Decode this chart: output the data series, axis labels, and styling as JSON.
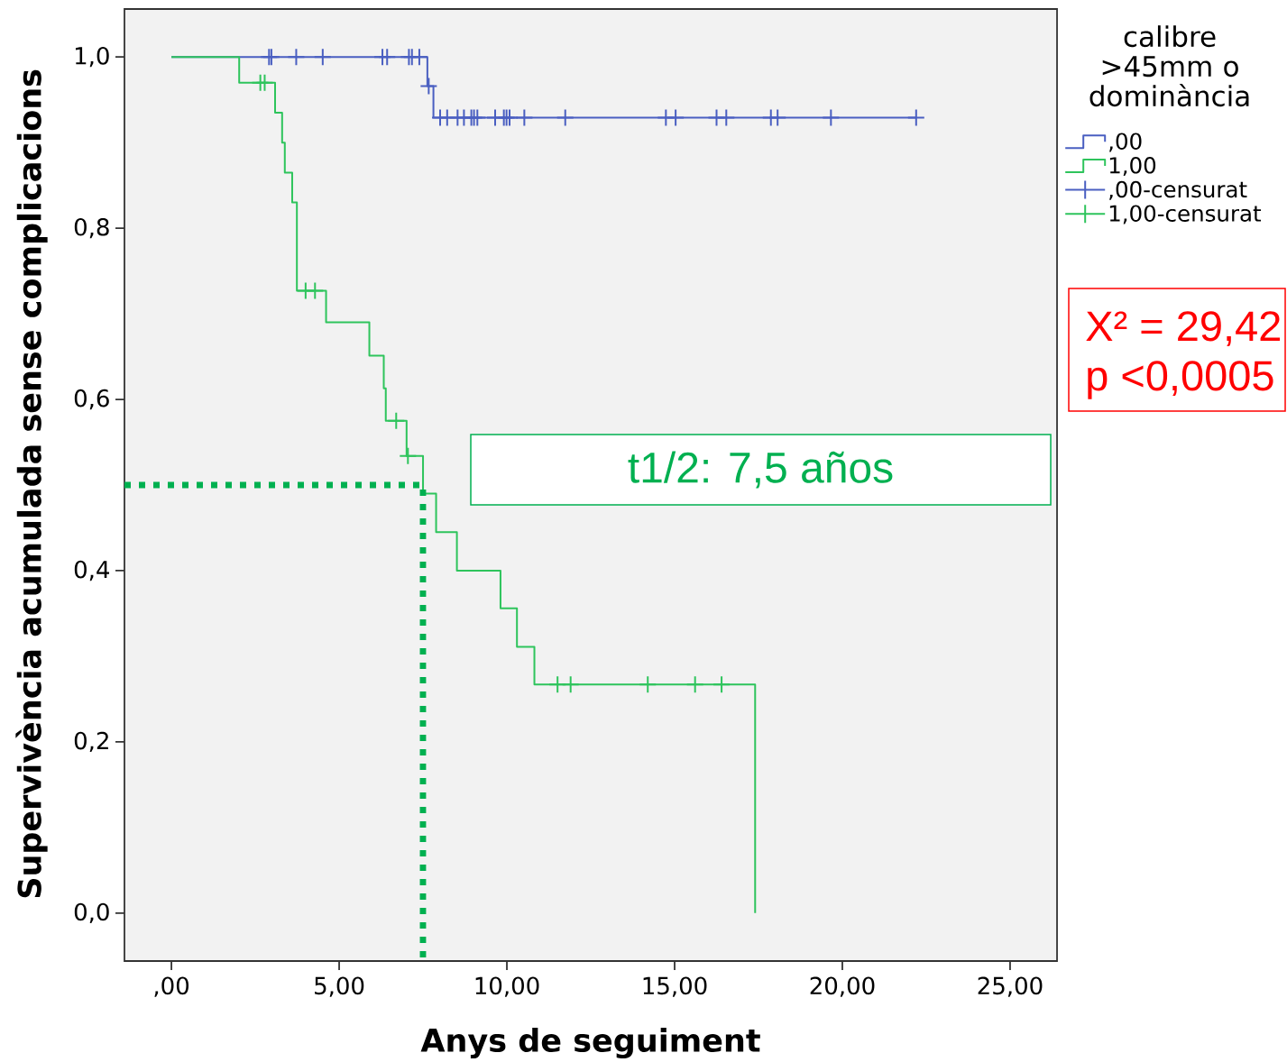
{
  "chart_data": {
    "type": "step",
    "xlabel": "Anys de seguiment",
    "ylabel": "Supervivència acumulada sense complicacions",
    "legend_title": "calibre >45mm o dominància",
    "legend": "right",
    "xlim": [
      -1.4,
      26.4
    ],
    "ylim": [
      -0.056,
      1.056
    ],
    "xticks": [
      {
        "value": 0,
        "label": ",00"
      },
      {
        "value": 5,
        "label": "5,00"
      },
      {
        "value": 10,
        "label": "10,00"
      },
      {
        "value": 15,
        "label": "15,00"
      },
      {
        "value": 20,
        "label": "20,00"
      },
      {
        "value": 25,
        "label": "25,00"
      }
    ],
    "yticks": [
      {
        "value": 0,
        "label": "0,0"
      },
      {
        "value": 0.2,
        "label": "0,2"
      },
      {
        "value": 0.4,
        "label": "0,4"
      },
      {
        "value": 0.6,
        "label": "0,6"
      },
      {
        "value": 0.8,
        "label": "0,8"
      },
      {
        "value": 1,
        "label": "1,0"
      }
    ],
    "series": [
      {
        "name": ",00",
        "color": "#4a5fc1",
        "x": [
          0,
          7.63,
          7.81,
          22.2
        ],
        "values": [
          1.0,
          0.966,
          0.929,
          0.929
        ]
      },
      {
        "name": "1,00",
        "color": "#2ec45c",
        "x": [
          0,
          2.02,
          3.09,
          3.3,
          3.38,
          3.6,
          3.74,
          4.61,
          5.9,
          6.33,
          6.39,
          7.01,
          7.5,
          7.89,
          8.51,
          9.81,
          10.3,
          10.82,
          17.4
        ],
        "values": [
          1.0,
          0.97,
          0.935,
          0.9,
          0.865,
          0.83,
          0.727,
          0.69,
          0.651,
          0.613,
          0.575,
          0.534,
          0.49,
          0.445,
          0.4,
          0.356,
          0.311,
          0.267,
          0.0
        ]
      },
      {
        "name": ",00-censurat",
        "type": "scatter",
        "marker": "cross",
        "color": "#4a5fc1",
        "x": [
          2.91,
          2.98,
          3.72,
          4.51,
          6.29,
          6.43,
          7.08,
          7.17,
          7.39,
          7.67,
          8.01,
          8.22,
          8.53,
          8.72,
          8.94,
          9.02,
          9.12,
          9.65,
          9.91,
          9.99,
          10.08,
          10.52,
          11.74,
          14.74,
          15.03,
          16.25,
          16.54,
          17.87,
          18.07,
          19.66,
          22.2
        ],
        "values": [
          1.0,
          1.0,
          1.0,
          1.0,
          1.0,
          1.0,
          1.0,
          1.0,
          1.0,
          0.966,
          0.929,
          0.929,
          0.929,
          0.929,
          0.929,
          0.929,
          0.929,
          0.929,
          0.929,
          0.929,
          0.929,
          0.929,
          0.929,
          0.929,
          0.929,
          0.929,
          0.929,
          0.929,
          0.929,
          0.929,
          0.929
        ]
      },
      {
        "name": "1,00-censurat",
        "type": "scatter",
        "marker": "cross",
        "color": "#2ec45c",
        "x": [
          2.65,
          2.78,
          4.0,
          4.28,
          6.7,
          7.05,
          11.51,
          11.9,
          14.2,
          15.61,
          16.4
        ],
        "values": [
          0.97,
          0.97,
          0.727,
          0.727,
          0.575,
          0.534,
          0.267,
          0.267,
          0.267,
          0.267,
          0.267
        ]
      },
      {
        "type": "line",
        "line_style": "dotted",
        "color": "#00b050",
        "x": [
          -1.4,
          7.5,
          7.5
        ],
        "values": [
          0.5,
          0.5,
          -0.056
        ]
      }
    ],
    "annotations": [
      "t1/2: 7,5 años",
      "X² = 29,42",
      "p <0,0005"
    ]
  }
}
